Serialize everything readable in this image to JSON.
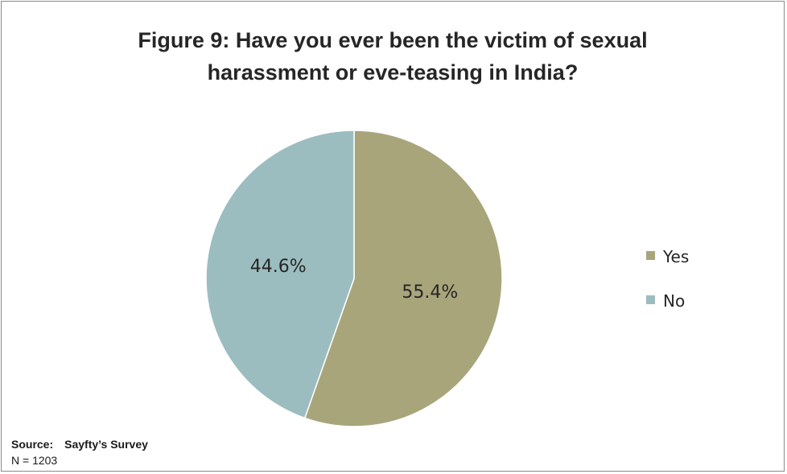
{
  "chart_data": {
    "type": "pie",
    "title_lines": [
      "Figure 9: Have you ever been the victim of sexual",
      "harassment or eve-teasing in India?"
    ],
    "slices": [
      {
        "label": "Yes",
        "value": 55.4,
        "display": "55.4%",
        "color": "#a8a57b"
      },
      {
        "label": "No",
        "value": 44.6,
        "display": "44.6%",
        "color": "#9cbdbf"
      }
    ],
    "start_angle_deg": 0,
    "direction": "clockwise",
    "legend_position": "right"
  },
  "footer": {
    "source_label": "Source:",
    "source_value": "Sayfty’s Survey",
    "n_text": "N = 1203"
  }
}
